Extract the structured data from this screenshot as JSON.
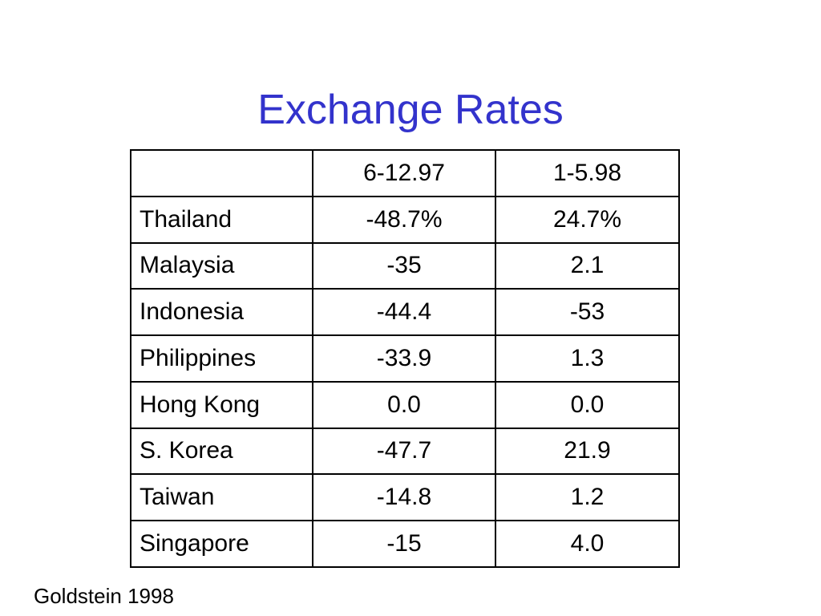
{
  "title": "Exchange Rates",
  "table": {
    "header": [
      "6-12.97",
      "1-5.98"
    ],
    "rows": [
      [
        "Thailand",
        "-48.7%",
        "24.7%"
      ],
      [
        "Malaysia",
        "-35",
        "2.1"
      ],
      [
        "Indonesia",
        "-44.4",
        "-53"
      ],
      [
        "Philippines",
        "-33.9",
        "1.3"
      ],
      [
        "Hong Kong",
        "0.0",
        "0.0"
      ],
      [
        "S. Korea",
        "-47.7",
        "21.9"
      ],
      [
        "Taiwan",
        "-14.8",
        "1.2"
      ],
      [
        "Singapore",
        "-15",
        "4.0"
      ]
    ]
  },
  "source": "Goldstein 1998"
}
